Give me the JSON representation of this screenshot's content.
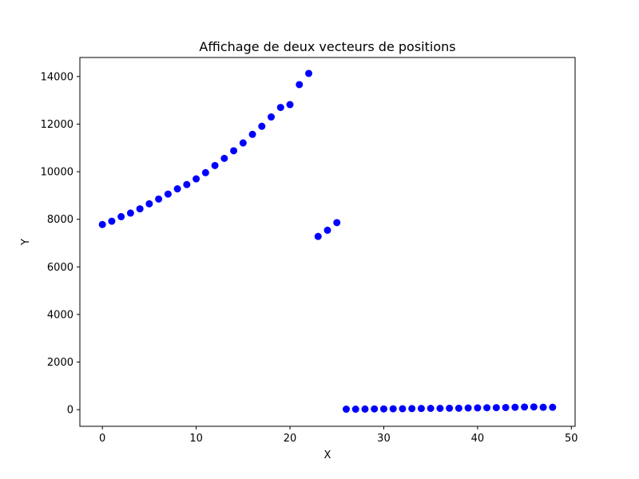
{
  "chart_data": {
    "type": "scatter",
    "title": "Affichage de deux vecteurs de positions",
    "xlabel": "X",
    "ylabel": "Y",
    "xlim": [
      -2.4,
      50.4
    ],
    "ylim": [
      -700,
      14800
    ],
    "xticks": [
      0,
      10,
      20,
      30,
      40,
      50
    ],
    "yticks": [
      0,
      2000,
      4000,
      6000,
      8000,
      10000,
      12000,
      14000
    ],
    "grid": false,
    "marker_color": "#0000ff",
    "series": [
      {
        "x": [
          0,
          1,
          2,
          3,
          4,
          5,
          6,
          7,
          8,
          9,
          10,
          11,
          12,
          13,
          14,
          15,
          16,
          17,
          18,
          19,
          20,
          21,
          22,
          23,
          24,
          25,
          26,
          27,
          28,
          29,
          30,
          31,
          32,
          33,
          34,
          35,
          36,
          37,
          38,
          39,
          40,
          41,
          42,
          43,
          44,
          45,
          46,
          47,
          48
        ],
        "y": [
          7780,
          7920,
          8110,
          8260,
          8440,
          8650,
          8850,
          9060,
          9280,
          9460,
          9700,
          9960,
          10260,
          10560,
          10880,
          11210,
          11570,
          11910,
          12300,
          12700,
          12820,
          13660,
          14130,
          7280,
          7540,
          7860,
          20,
          20,
          25,
          30,
          30,
          35,
          40,
          45,
          50,
          55,
          55,
          60,
          60,
          70,
          75,
          80,
          85,
          90,
          100,
          110,
          115,
          100,
          100
        ]
      }
    ]
  }
}
